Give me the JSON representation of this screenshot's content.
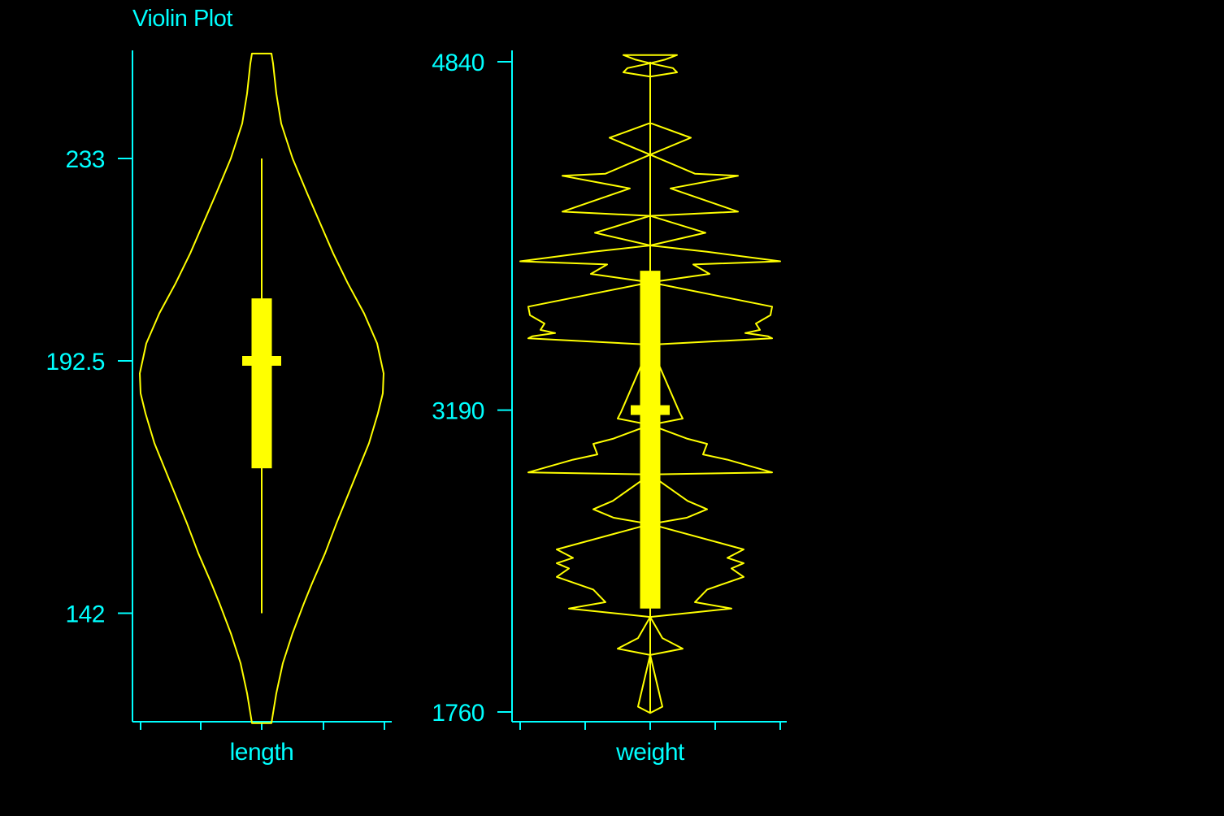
{
  "colors": {
    "background": "#000000",
    "axis": "#00FFFF",
    "violin": "#FFFF00"
  },
  "chart_data": {
    "type": "violin",
    "title": "Violin Plot",
    "panels": [
      {
        "variable": "length",
        "xlabel": "length",
        "yticks": [
          142,
          192.5,
          233
        ],
        "ytick_labels": [
          "142",
          "192.5",
          "233"
        ],
        "ylim": [
          121,
          253
        ],
        "stats": {
          "min": 142,
          "q1": 171,
          "median": 192.5,
          "q3": 205,
          "max": 233
        },
        "density_max_halfwidth": 150,
        "density_profile": [
          [
            254,
            12
          ],
          [
            252,
            14
          ],
          [
            246,
            18
          ],
          [
            240,
            24
          ],
          [
            233,
            38
          ],
          [
            226,
            56
          ],
          [
            220,
            72
          ],
          [
            214,
            88
          ],
          [
            208,
            106
          ],
          [
            202,
            126
          ],
          [
            196,
            142
          ],
          [
            190,
            150
          ],
          [
            186,
            149
          ],
          [
            182,
            143
          ],
          [
            176,
            132
          ],
          [
            168,
            112
          ],
          [
            160,
            92
          ],
          [
            154,
            78
          ],
          [
            148,
            62
          ],
          [
            144,
            52
          ],
          [
            138,
            38
          ],
          [
            132,
            26
          ],
          [
            126,
            18
          ],
          [
            122,
            14
          ],
          [
            120,
            12
          ]
        ]
      },
      {
        "variable": "weight",
        "xlabel": "weight",
        "yticks": [
          1760,
          3190,
          4840
        ],
        "ytick_labels": [
          "1760",
          "3190",
          "4840"
        ],
        "ylim": [
          1720,
          4900
        ],
        "stats": {
          "min": 1760,
          "q1": 2250,
          "median": 3190,
          "q3": 3850,
          "max": 4840
        },
        "density_max_halfwidth": 160,
        "density_profile": [
          [
            4872,
            33
          ],
          [
            4850,
            18
          ],
          [
            4833,
            0
          ],
          [
            4810,
            28
          ],
          [
            4790,
            33
          ],
          [
            4770,
            0
          ],
          [
            4550,
            0
          ],
          [
            4480,
            50
          ],
          [
            4400,
            0
          ],
          [
            4310,
            55
          ],
          [
            4300,
            108
          ],
          [
            4240,
            25
          ],
          [
            4130,
            108
          ],
          [
            4110,
            0
          ],
          [
            4030,
            68
          ],
          [
            3970,
            0
          ],
          [
            3940,
            70
          ],
          [
            3895,
            160
          ],
          [
            3880,
            53
          ],
          [
            3835,
            73
          ],
          [
            3795,
            0
          ],
          [
            3680,
            150
          ],
          [
            3640,
            148
          ],
          [
            3600,
            130
          ],
          [
            3570,
            135
          ],
          [
            3555,
            117
          ],
          [
            3540,
            145
          ],
          [
            3530,
            150
          ],
          [
            3500,
            0
          ],
          [
            3180,
            36
          ],
          [
            3150,
            40
          ],
          [
            3120,
            0
          ],
          [
            3055,
            45
          ],
          [
            3030,
            70
          ],
          [
            2980,
            65
          ],
          [
            2955,
            95
          ],
          [
            2895,
            150
          ],
          [
            2885,
            0
          ],
          [
            2760,
            46
          ],
          [
            2720,
            70
          ],
          [
            2680,
            45
          ],
          [
            2650,
            0
          ],
          [
            2530,
            115
          ],
          [
            2490,
            95
          ],
          [
            2465,
            115
          ],
          [
            2440,
            100
          ],
          [
            2400,
            115
          ],
          [
            2340,
            70
          ],
          [
            2280,
            55
          ],
          [
            2250,
            100
          ],
          [
            2210,
            0
          ],
          [
            2110,
            15
          ],
          [
            2060,
            40
          ],
          [
            2030,
            0
          ],
          [
            1785,
            15
          ],
          [
            1755,
            0
          ]
        ]
      }
    ]
  }
}
